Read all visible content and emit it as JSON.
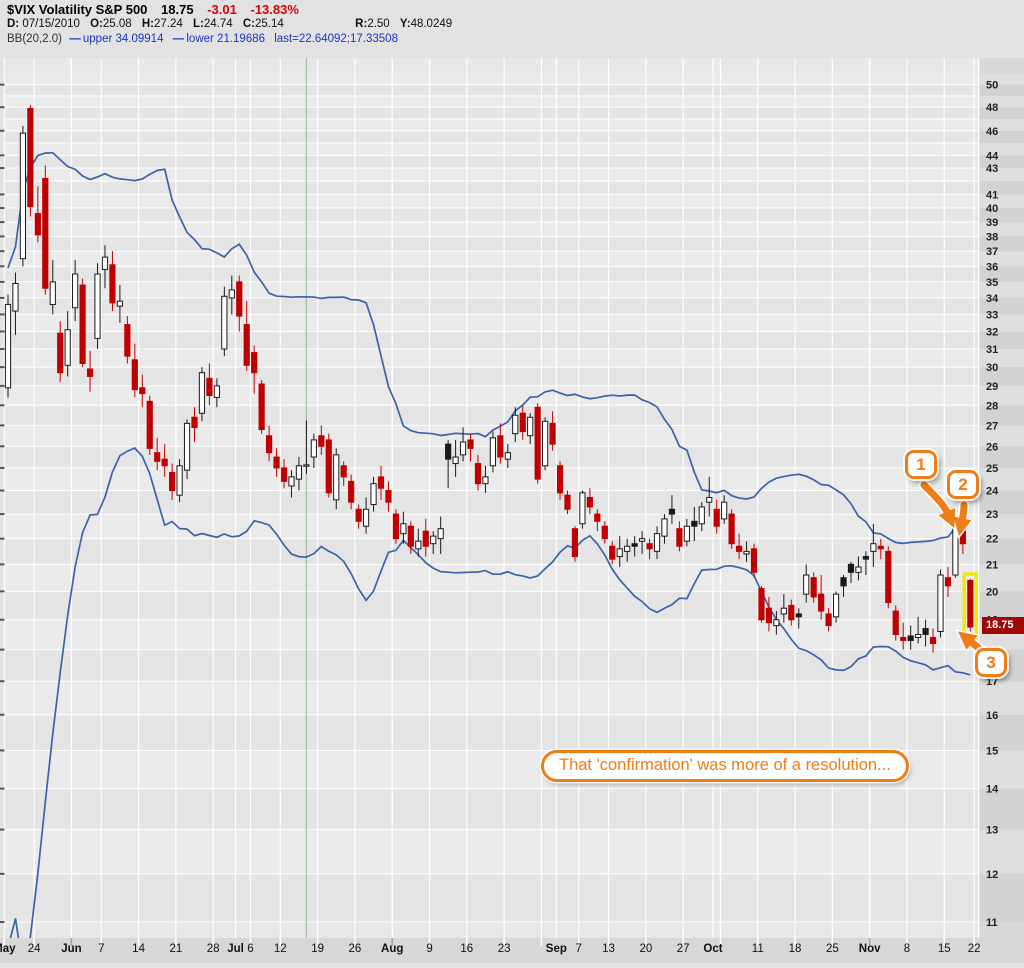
{
  "header": {
    "symbol_title": "$VIX Volatility S&P 500",
    "last_price": "18.75",
    "change": "-3.01",
    "change_pct": "-13.83%",
    "date_label": "D:",
    "date": "07/15/2010",
    "open_label": "O:",
    "open": "25.08",
    "high_label": "H:",
    "high": "27.24",
    "low_label": "L:",
    "low": "24.74",
    "close_label": "C:",
    "close": "25.14",
    "range_label": "R:",
    "range": "2.50",
    "y_label": "Y:",
    "y_value": "48.0249",
    "bb": {
      "label": "BB(20,2.0)",
      "dash": "—",
      "upper": "upper 34.09914",
      "lower": "lower 21.19686",
      "last": "last=22.64092;17.33508"
    }
  },
  "annotations": {
    "badges": [
      {
        "label": "1"
      },
      {
        "label": "2"
      },
      {
        "label": "3"
      }
    ],
    "note": "That 'confirmation' was more of a resolution...",
    "price_tag": "18.75"
  },
  "chart_data": {
    "type": "candlestick",
    "symbol": "$VIX",
    "overlay": "Bollinger Bands (20,2.0)",
    "y_log": true,
    "ylim": [
      10.7,
      52.5
    ],
    "grid": true,
    "y_ticks": [
      50,
      48,
      46,
      44,
      43,
      41,
      40,
      39,
      38,
      37,
      36,
      35,
      34,
      33,
      32,
      31,
      30,
      29,
      28,
      27,
      26,
      25,
      24,
      23,
      22,
      21,
      20,
      19,
      18,
      17,
      16,
      15,
      14,
      13,
      12,
      11
    ],
    "x_ticks": [
      {
        "label": "May",
        "index": 0,
        "month": true
      },
      {
        "label": "24",
        "index": 4
      },
      {
        "label": "Jun",
        "index": 9,
        "month": true
      },
      {
        "label": "7",
        "index": 13
      },
      {
        "label": "14",
        "index": 18
      },
      {
        "label": "21",
        "index": 23
      },
      {
        "label": "28",
        "index": 28
      },
      {
        "label": "Jul",
        "index": 31,
        "month": true
      },
      {
        "label": "6",
        "index": 33
      },
      {
        "label": "12",
        "index": 37
      },
      {
        "label": "19",
        "index": 42
      },
      {
        "label": "26",
        "index": 47
      },
      {
        "label": "Aug",
        "index": 52,
        "month": true
      },
      {
        "label": "9",
        "index": 57
      },
      {
        "label": "16",
        "index": 62
      },
      {
        "label": "23",
        "index": 67
      },
      {
        "label": "Sep",
        "index": 74,
        "month": true
      },
      {
        "label": "7",
        "index": 77
      },
      {
        "label": "13",
        "index": 81
      },
      {
        "label": "20",
        "index": 86
      },
      {
        "label": "27",
        "index": 91
      },
      {
        "label": "Oct",
        "index": 95,
        "month": true
      },
      {
        "label": "11",
        "index": 101
      },
      {
        "label": "18",
        "index": 106
      },
      {
        "label": "25",
        "index": 111
      },
      {
        "label": "Nov",
        "index": 116,
        "month": true
      },
      {
        "label": "8",
        "index": 121
      },
      {
        "label": "15",
        "index": 126
      },
      {
        "label": "22",
        "index": 130
      }
    ],
    "week_start_indices": [
      0,
      4,
      9,
      13,
      18,
      23,
      28,
      33,
      37,
      42,
      47,
      52,
      57,
      62,
      67,
      72,
      77,
      81,
      86,
      91,
      96,
      101,
      106,
      111,
      116,
      121,
      126,
      130
    ],
    "month_start_indices": [
      9,
      31,
      52,
      74,
      95,
      116
    ],
    "cursor_index": 40,
    "bb": {
      "period": 20,
      "mult": 2.0,
      "seed_closes": [
        15.2,
        15.9,
        16.3,
        15.6,
        16.1,
        16.6,
        17.4,
        18.4,
        20.2,
        22.0,
        24.9,
        33.3,
        26.8,
        25.5,
        27.6,
        29.2,
        28.0,
        31.2,
        30.2
      ]
    },
    "candles": [
      [
        "May 18",
        28.9,
        34.2,
        28.4,
        33.6
      ],
      [
        "May 19",
        33.2,
        35.6,
        31.8,
        34.9
      ],
      [
        "May 20",
        36.5,
        46.4,
        36.0,
        45.8
      ],
      [
        "May 21",
        47.9,
        48.2,
        39.4,
        40.1
      ],
      [
        "May 24",
        39.6,
        41.6,
        37.6,
        38.1
      ],
      [
        "May 25",
        42.2,
        43.2,
        34.2,
        34.6
      ],
      [
        "May 26",
        33.6,
        36.4,
        33.0,
        35.0
      ],
      [
        "May 27",
        31.9,
        32.6,
        29.2,
        29.7
      ],
      [
        "May 28",
        30.1,
        33.2,
        29.5,
        32.1
      ],
      [
        "Jun 1",
        33.4,
        36.4,
        32.6,
        35.5
      ],
      [
        "Jun 2",
        34.8,
        35.2,
        30.0,
        30.2
      ],
      [
        "Jun 3",
        29.9,
        30.9,
        28.7,
        29.5
      ],
      [
        "Jun 4",
        31.6,
        36.2,
        31.0,
        35.5
      ],
      [
        "Jun 7",
        35.8,
        37.4,
        34.6,
        36.6
      ],
      [
        "Jun 8",
        36.1,
        37.0,
        33.2,
        33.7
      ],
      [
        "Jun 9",
        33.5,
        34.8,
        32.5,
        33.8
      ],
      [
        "Jun 10",
        32.4,
        32.9,
        30.2,
        30.6
      ],
      [
        "Jun 11",
        30.4,
        31.3,
        28.4,
        28.8
      ],
      [
        "Jun 14",
        28.9,
        29.6,
        27.9,
        28.6
      ],
      [
        "Jun 15",
        28.2,
        28.5,
        25.6,
        25.9
      ],
      [
        "Jun 16",
        25.7,
        26.4,
        24.9,
        25.3
      ],
      [
        "Jun 17",
        25.4,
        26.1,
        24.6,
        25.1
      ],
      [
        "Jun 18",
        24.8,
        25.2,
        23.6,
        24.0
      ],
      [
        "Jun 21",
        23.8,
        25.4,
        23.5,
        25.1
      ],
      [
        "Jun 22",
        24.9,
        27.3,
        24.5,
        27.1
      ],
      [
        "Jun 23",
        27.4,
        27.9,
        26.2,
        26.9
      ],
      [
        "Jun 24",
        27.6,
        30.0,
        27.2,
        29.7
      ],
      [
        "Jun 25",
        29.4,
        30.2,
        28.0,
        28.5
      ],
      [
        "Jun 28",
        28.4,
        29.4,
        27.9,
        29.0
      ],
      [
        "Jun 29",
        31.0,
        34.7,
        30.6,
        34.1
      ],
      [
        "Jun 30",
        34.0,
        35.4,
        33.0,
        34.5
      ],
      [
        "Jul 1",
        35.0,
        35.4,
        32.0,
        32.9
      ],
      [
        "Jul 2",
        32.4,
        33.8,
        29.8,
        30.1
      ],
      [
        "Jul 6",
        30.8,
        31.2,
        28.6,
        29.7
      ],
      [
        "Jul 7",
        29.1,
        29.3,
        26.6,
        26.8
      ],
      [
        "Jul 8",
        26.5,
        27.0,
        25.3,
        25.7
      ],
      [
        "Jul 9",
        25.5,
        25.9,
        24.6,
        25.0
      ],
      [
        "Jul 12",
        25.0,
        25.4,
        24.1,
        24.4
      ],
      [
        "Jul 13",
        24.2,
        24.9,
        23.7,
        24.6
      ],
      [
        "Jul 14",
        24.5,
        25.5,
        24.0,
        25.1
      ],
      [
        "Jul 15",
        25.08,
        27.24,
        24.74,
        25.14
      ],
      [
        "Jul 16",
        25.5,
        26.6,
        25.0,
        26.3
      ],
      [
        "Jul 19",
        26.5,
        27.0,
        25.6,
        26.0
      ],
      [
        "Jul 20",
        26.3,
        26.6,
        23.7,
        23.9
      ],
      [
        "Jul 21",
        23.6,
        25.9,
        23.2,
        25.6
      ],
      [
        "Jul 22",
        25.1,
        25.3,
        24.2,
        24.6
      ],
      [
        "Jul 23",
        24.4,
        24.7,
        23.2,
        23.5
      ],
      [
        "Jul 26",
        23.2,
        23.4,
        22.4,
        22.7
      ],
      [
        "Jul 27",
        22.5,
        23.7,
        22.2,
        23.2
      ],
      [
        "Jul 28",
        23.4,
        24.6,
        23.1,
        24.3
      ],
      [
        "Jul 29",
        24.6,
        25.1,
        23.6,
        24.1
      ],
      [
        "Jul 30",
        24.0,
        24.4,
        23.1,
        23.5
      ],
      [
        "Aug 2",
        23.0,
        23.2,
        21.8,
        22.0
      ],
      [
        "Aug 3",
        22.2,
        23.1,
        21.8,
        22.6
      ],
      [
        "Aug 4",
        22.5,
        22.7,
        21.4,
        21.7
      ],
      [
        "Aug 5",
        21.6,
        22.4,
        21.3,
        21.9
      ],
      [
        "Aug 6",
        22.3,
        22.8,
        21.3,
        21.7
      ],
      [
        "Aug 9",
        21.8,
        22.3,
        21.4,
        22.1
      ],
      [
        "Aug 10",
        22.0,
        22.9,
        21.4,
        22.4
      ],
      [
        "Aug 11",
        26.1,
        26.3,
        24.1,
        25.4
      ],
      [
        "Aug 12",
        25.2,
        26.3,
        24.6,
        25.5
      ],
      [
        "Aug 13",
        25.6,
        26.9,
        25.3,
        26.2
      ],
      [
        "Aug 16",
        26.3,
        26.6,
        25.3,
        25.9
      ],
      [
        "Aug 17",
        25.2,
        25.6,
        24.0,
        24.3
      ],
      [
        "Aug 18",
        24.3,
        25.1,
        23.9,
        24.6
      ],
      [
        "Aug 19",
        25.1,
        26.7,
        24.8,
        26.4
      ],
      [
        "Aug 20",
        26.5,
        27.1,
        25.2,
        25.5
      ],
      [
        "Aug 23",
        25.4,
        26.1,
        25.0,
        25.7
      ],
      [
        "Aug 24",
        26.6,
        27.9,
        26.2,
        27.5
      ],
      [
        "Aug 25",
        27.6,
        28.0,
        26.3,
        26.7
      ],
      [
        "Aug 26",
        26.5,
        27.6,
        26.1,
        27.4
      ],
      [
        "Aug 27",
        27.9,
        28.1,
        24.3,
        24.5
      ],
      [
        "Aug 30",
        25.1,
        27.4,
        24.9,
        27.2
      ],
      [
        "Aug 31",
        27.1,
        27.7,
        25.8,
        26.1
      ],
      [
        "Sep 1",
        25.1,
        25.3,
        23.6,
        23.9
      ],
      [
        "Sep 2",
        23.8,
        24.0,
        23.0,
        23.2
      ],
      [
        "Sep 3",
        22.4,
        22.5,
        21.1,
        21.3
      ],
      [
        "Sep 7",
        22.6,
        24.0,
        22.4,
        23.9
      ],
      [
        "Sep 8",
        23.7,
        24.1,
        23.0,
        23.3
      ],
      [
        "Sep 9",
        23.0,
        23.2,
        22.3,
        22.7
      ],
      [
        "Sep 10",
        22.5,
        22.7,
        21.8,
        22.0
      ],
      [
        "Sep 13",
        21.7,
        21.9,
        21.0,
        21.2
      ],
      [
        "Sep 14",
        21.3,
        22.1,
        20.9,
        21.6
      ],
      [
        "Sep 15",
        21.5,
        22.0,
        21.1,
        21.7
      ],
      [
        "Sep 16",
        21.8,
        22.1,
        21.3,
        21.7
      ],
      [
        "Sep 17",
        21.9,
        22.3,
        21.4,
        22.0
      ],
      [
        "Sep 20",
        21.8,
        22.0,
        21.2,
        21.6
      ],
      [
        "Sep 21",
        21.5,
        22.5,
        21.2,
        22.2
      ],
      [
        "Sep 22",
        22.1,
        23.0,
        21.8,
        22.8
      ],
      [
        "Sep 23",
        23.2,
        23.8,
        22.6,
        23.0
      ],
      [
        "Sep 24",
        22.4,
        22.7,
        21.5,
        21.7
      ],
      [
        "Sep 27",
        21.9,
        22.8,
        21.7,
        22.5
      ],
      [
        "Sep 28",
        22.7,
        23.3,
        21.9,
        22.5
      ],
      [
        "Sep 29",
        22.6,
        23.5,
        22.3,
        23.3
      ],
      [
        "Sep 30",
        23.5,
        24.6,
        22.9,
        23.7
      ],
      [
        "Oct 1",
        23.2,
        23.6,
        22.2,
        22.5
      ],
      [
        "Oct 4",
        22.8,
        23.8,
        22.6,
        23.5
      ],
      [
        "Oct 5",
        23.0,
        23.2,
        21.6,
        21.8
      ],
      [
        "Oct 6",
        21.7,
        22.2,
        21.2,
        21.5
      ],
      [
        "Oct 7",
        21.4,
        21.9,
        21.1,
        21.5
      ],
      [
        "Oct 8",
        21.6,
        21.8,
        20.5,
        20.7
      ],
      [
        "Oct 11",
        20.1,
        20.2,
        18.9,
        19.0
      ],
      [
        "Oct 12",
        19.4,
        19.8,
        18.6,
        18.9
      ],
      [
        "Oct 13",
        18.8,
        19.3,
        18.5,
        19.0
      ],
      [
        "Oct 14",
        19.2,
        19.9,
        18.9,
        19.4
      ],
      [
        "Oct 15",
        19.5,
        19.7,
        18.8,
        19.0
      ],
      [
        "Oct 18",
        19.2,
        19.4,
        18.7,
        19.1
      ],
      [
        "Oct 19",
        19.9,
        21.0,
        19.6,
        20.6
      ],
      [
        "Oct 20",
        20.5,
        20.7,
        19.6,
        19.8
      ],
      [
        "Oct 21",
        19.9,
        20.6,
        19.0,
        19.3
      ],
      [
        "Oct 22",
        19.2,
        19.4,
        18.6,
        18.8
      ],
      [
        "Oct 25",
        19.1,
        20.0,
        18.9,
        19.9
      ],
      [
        "Oct 26",
        20.5,
        20.6,
        19.8,
        20.2
      ],
      [
        "Oct 27",
        21.0,
        21.1,
        20.3,
        20.7
      ],
      [
        "Oct 28",
        20.7,
        21.3,
        20.4,
        20.9
      ],
      [
        "Oct 29",
        21.3,
        21.5,
        20.6,
        21.2
      ],
      [
        "Nov 1",
        21.5,
        22.6,
        20.9,
        21.8
      ],
      [
        "Nov 2",
        21.7,
        22.0,
        21.2,
        21.6
      ],
      [
        "Nov 3",
        21.5,
        21.7,
        19.4,
        19.6
      ],
      [
        "Nov 4",
        19.3,
        19.5,
        18.3,
        18.5
      ],
      [
        "Nov 5",
        18.4,
        18.9,
        18.0,
        18.3
      ],
      [
        "Nov 8",
        18.45,
        18.8,
        18.0,
        18.3
      ],
      [
        "Nov 9",
        18.4,
        19.1,
        18.2,
        18.5
      ],
      [
        "Nov 10",
        18.7,
        19.0,
        18.1,
        18.5
      ],
      [
        "Nov 11",
        18.4,
        18.7,
        17.9,
        18.2
      ],
      [
        "Nov 12",
        18.6,
        20.8,
        18.4,
        20.6
      ],
      [
        "Nov 15",
        20.5,
        20.9,
        19.8,
        20.2
      ],
      [
        "Nov 16",
        20.6,
        23.1,
        20.5,
        22.6
      ],
      [
        "Nov 17",
        22.4,
        22.7,
        21.4,
        21.8
      ],
      [
        "Nov 18",
        20.4,
        20.45,
        18.6,
        18.75
      ]
    ],
    "colors": {
      "down": "#c00000",
      "up": "#1a1a1a",
      "hollow_fill": "#ffffff",
      "band": "#3a62ad",
      "cursor": "#a7c3a7",
      "grid": "#ffffff",
      "page_bg": "#e2e2e2",
      "plot_bg": "#e7e7e7",
      "stripe_light": "#eaeaea",
      "stripe_dark": "#e4e4e4",
      "margin_bg": "#d8d8d8",
      "margin_stripe_light": "#dedede",
      "margin_stripe_dark": "#d2d2d2",
      "axis_strip_bg": "#d7d7d7",
      "highlight": "#f2e70c",
      "annotation": "#ee7d18",
      "tag_bg": "#a00808"
    }
  }
}
